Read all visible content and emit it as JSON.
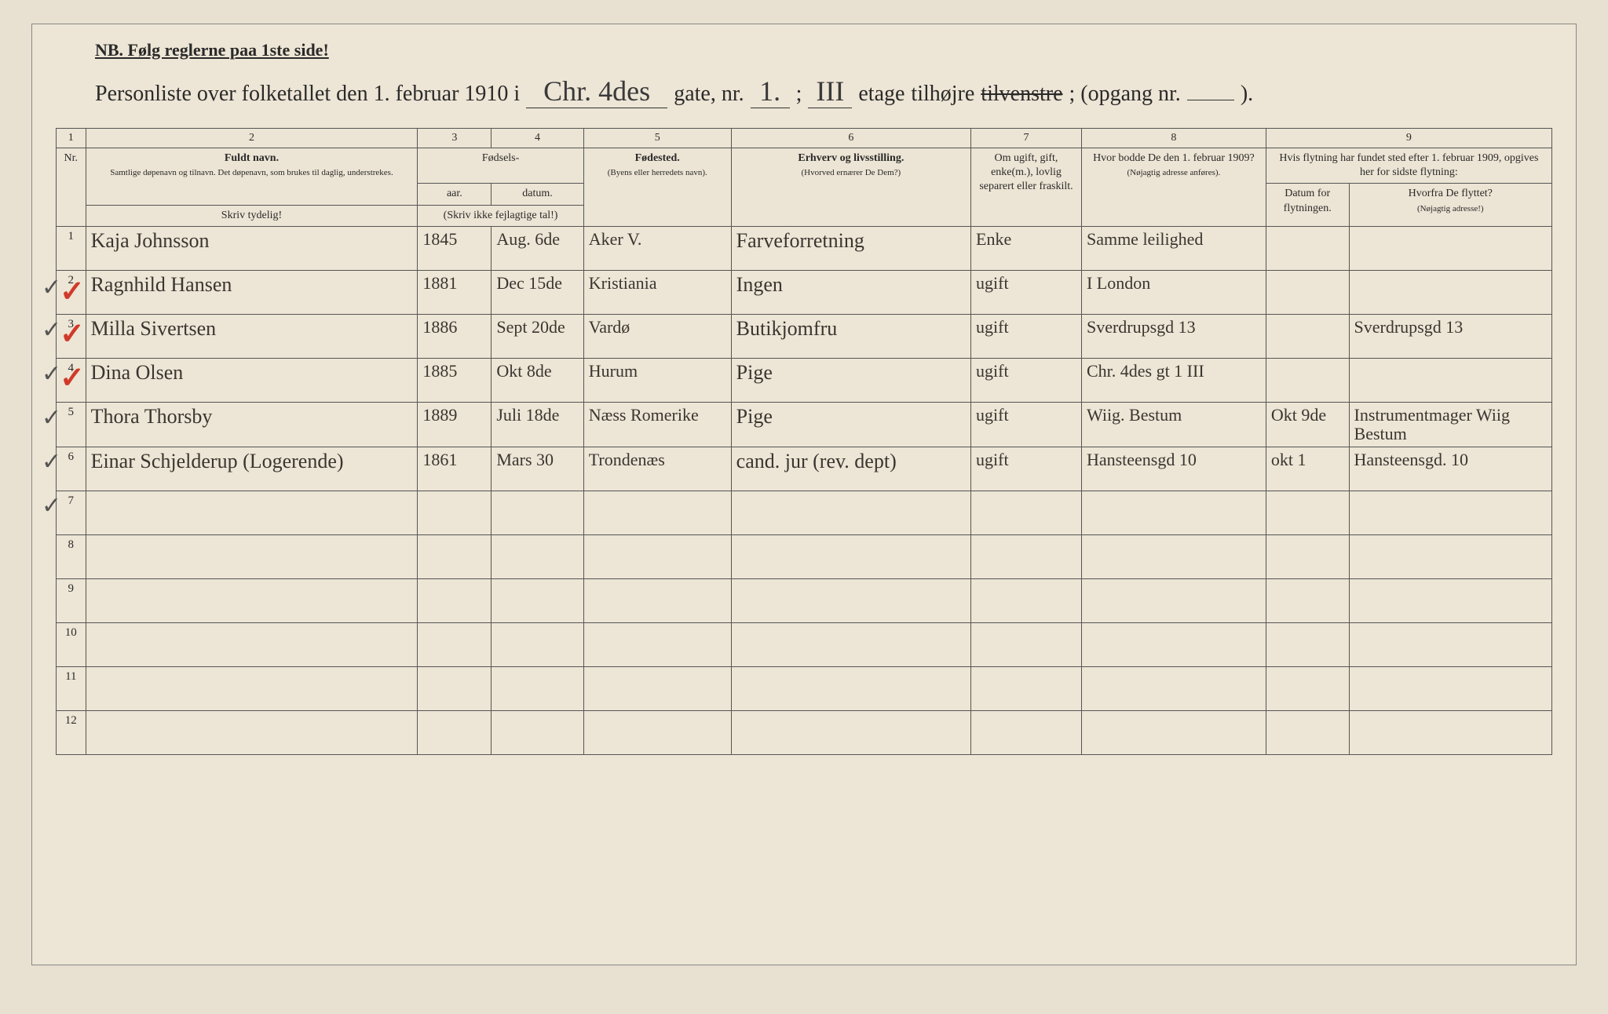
{
  "header": {
    "nb": "NB. Følg reglerne paa 1ste side!",
    "title_a": "Personliste over folketallet den 1. februar 1910 i",
    "street_script": "Chr. 4des",
    "label_gate": "gate, nr.",
    "house_nr": "1.",
    "semicolon": ";",
    "floor": "III",
    "label_etage": "etage",
    "tilhojre": "tilhøjre",
    "tilvenstre": "tilvenstre",
    "label_opgang": "; (opgang nr.",
    "opgang_val": "",
    "close": ")."
  },
  "colnums": [
    "1",
    "2",
    "3",
    "4",
    "5",
    "6",
    "7",
    "8",
    "9"
  ],
  "headers": {
    "nr": "Nr.",
    "fuldt_navn": "Fuldt navn.",
    "fuldt_sub": "Samtlige døpenavn og tilnavn. Det døpenavn, som brukes til daglig, understrekes.",
    "fodsels": "Fødsels-",
    "aar": "aar.",
    "datum": "datum.",
    "aar_sub": "(Skriv ikke fejlagtige tal!)",
    "fodested": "Fødested.",
    "fodested_sub": "(Byens eller herredets navn).",
    "erhverv": "Erhverv og livsstilling.",
    "erhverv_sub": "(Hvorved ernærer De Dem?)",
    "omugift": "Om ugift, gift, enke(m.), lovlig separert eller fraskilt.",
    "hvorbodde": "Hvor bodde De den 1. februar 1909?",
    "hvorbodde_sub": "(Nøjagtig adresse anføres).",
    "flytning": "Hvis flytning har fundet sted efter 1. februar 1909, opgives her for sidste flytning:",
    "datum_flyt": "Datum for flytningen.",
    "hvorfra": "Hvorfra De flyttet?",
    "hvorfra_sub": "(Nøjagtig adresse!)",
    "skriv_tydelig": "Skriv tydelig!"
  },
  "rows": [
    {
      "n": "1",
      "name": "Kaja Johnsson",
      "aar": "1845",
      "dat": "Aug. 6de",
      "sted": "Aker V.",
      "erhv": "Farveforretning",
      "stat": "Enke",
      "addr": "Samme leilighed",
      "flytd": "",
      "flytf": ""
    },
    {
      "n": "2",
      "name": "Ragnhild Hansen",
      "aar": "1881",
      "dat": "Dec 15de",
      "sted": "Kristiania",
      "erhv": "Ingen",
      "stat": "ugift",
      "addr": "I London",
      "flytd": "",
      "flytf": ""
    },
    {
      "n": "3",
      "name": "Milla Sivertsen",
      "aar": "1886",
      "dat": "Sept 20de",
      "sted": "Vardø",
      "erhv": "Butikjomfru",
      "stat": "ugift",
      "addr": "Sverdrupsgd 13",
      "flytd": "",
      "flytf": "Sverdrupsgd 13"
    },
    {
      "n": "4",
      "name": "Dina Olsen",
      "aar": "1885",
      "dat": "Okt 8de",
      "sted": "Hurum",
      "erhv": "Pige",
      "stat": "ugift",
      "addr": "Chr. 4des gt 1 III",
      "flytd": "",
      "flytf": ""
    },
    {
      "n": "5",
      "name": "Thora Thorsby",
      "aar": "1889",
      "dat": "Juli 18de",
      "sted": "Næss Romerike",
      "erhv": "Pige",
      "stat": "ugift",
      "addr": "Wiig. Bestum",
      "flytd": "Okt 9de",
      "flytf": "Instrumentmager Wiig Bestum"
    },
    {
      "n": "6",
      "name": "Einar Schjelderup (Logerende)",
      "aar": "1861",
      "dat": "Mars 30",
      "sted": "Trondenæs",
      "erhv": "cand. jur (rev. dept)",
      "stat": "ugift",
      "addr": "Hansteensgd 10",
      "flytd": "okt 1",
      "flytf": "Hansteensgd. 10"
    }
  ],
  "empty_rows": [
    "7",
    "8",
    "9",
    "10",
    "11",
    "12"
  ],
  "colors": {
    "paper": "#ede5d5",
    "ink": "#2a2a2a",
    "red": "#d03a2a",
    "border": "#555"
  }
}
